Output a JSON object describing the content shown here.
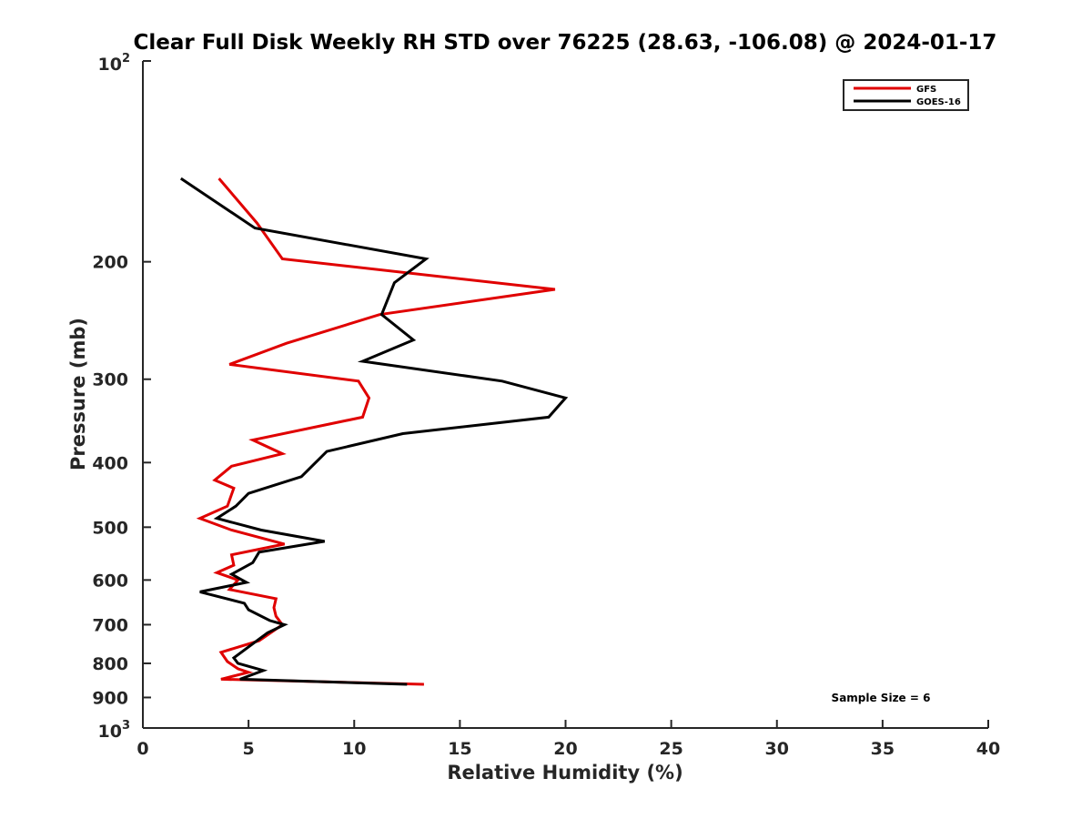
{
  "chart_data": {
    "type": "line",
    "title": "Clear Full Disk Weekly RH STD over 76225 (28.63, -106.08) @ 2024-01-17",
    "xlabel": "Relative Humidity (%)",
    "ylabel": "Pressure (mb)",
    "xlim": [
      0,
      40
    ],
    "ylim": [
      100,
      1000
    ],
    "y_scale": "log",
    "y_inverted": true,
    "grid": false,
    "legend_placement": "top-right",
    "x_ticks": [
      "0",
      "5",
      "10",
      "15",
      "20",
      "25",
      "30",
      "35",
      "40"
    ],
    "y_ticks": [
      {
        "value": 200,
        "label": "200"
      },
      {
        "value": 300,
        "label": "300"
      },
      {
        "value": 400,
        "label": "400"
      },
      {
        "value": 500,
        "label": "500"
      },
      {
        "value": 600,
        "label": "600"
      },
      {
        "value": 700,
        "label": "700"
      },
      {
        "value": 800,
        "label": "800"
      },
      {
        "value": 900,
        "label": "900"
      }
    ],
    "y_end_labels": {
      "top": {
        "base": "10",
        "exp": "2"
      },
      "bottom": {
        "base": "10",
        "exp": "3"
      }
    },
    "annotation": "Sample Size = 6",
    "series": [
      {
        "name": "GFS",
        "color": "#e00000",
        "x": [
          3.6,
          5.4,
          6.6,
          19.5,
          11.2,
          6.8,
          4.1,
          10.2,
          10.7,
          10.4,
          5.2,
          6.6,
          4.2,
          3.4,
          4.3,
          4.0,
          2.7,
          4.2,
          6.7,
          4.2,
          4.3,
          3.5,
          4.5,
          4.1,
          6.3,
          6.2,
          6.3,
          6.6,
          5.5,
          3.7,
          4.0,
          4.5,
          5.0,
          3.7,
          13.3
        ],
        "y": [
          150,
          175,
          198,
          220,
          240,
          265,
          285,
          302,
          320,
          342,
          370,
          388,
          405,
          425,
          437,
          465,
          485,
          505,
          530,
          550,
          570,
          585,
          600,
          620,
          640,
          660,
          680,
          700,
          740,
          770,
          795,
          815,
          825,
          845,
          860
        ]
      },
      {
        "name": "GOES-16",
        "color": "#000000",
        "x": [
          1.8,
          5.3,
          13.4,
          11.9,
          11.3,
          12.8,
          10.4,
          17.0,
          20.0,
          19.2,
          12.3,
          8.7,
          7.5,
          5.0,
          4.4,
          3.5,
          5.6,
          8.6,
          5.5,
          5.2,
          4.2,
          4.9,
          2.7,
          4.8,
          5.0,
          6.0,
          6.7,
          5.9,
          4.3,
          4.5,
          5.7,
          4.6,
          12.5
        ],
        "y": [
          150,
          178,
          198,
          215,
          240,
          262,
          282,
          302,
          320,
          342,
          362,
          385,
          420,
          445,
          465,
          485,
          505,
          525,
          545,
          565,
          588,
          605,
          625,
          650,
          665,
          690,
          700,
          720,
          785,
          800,
          820,
          845,
          860
        ]
      }
    ]
  }
}
